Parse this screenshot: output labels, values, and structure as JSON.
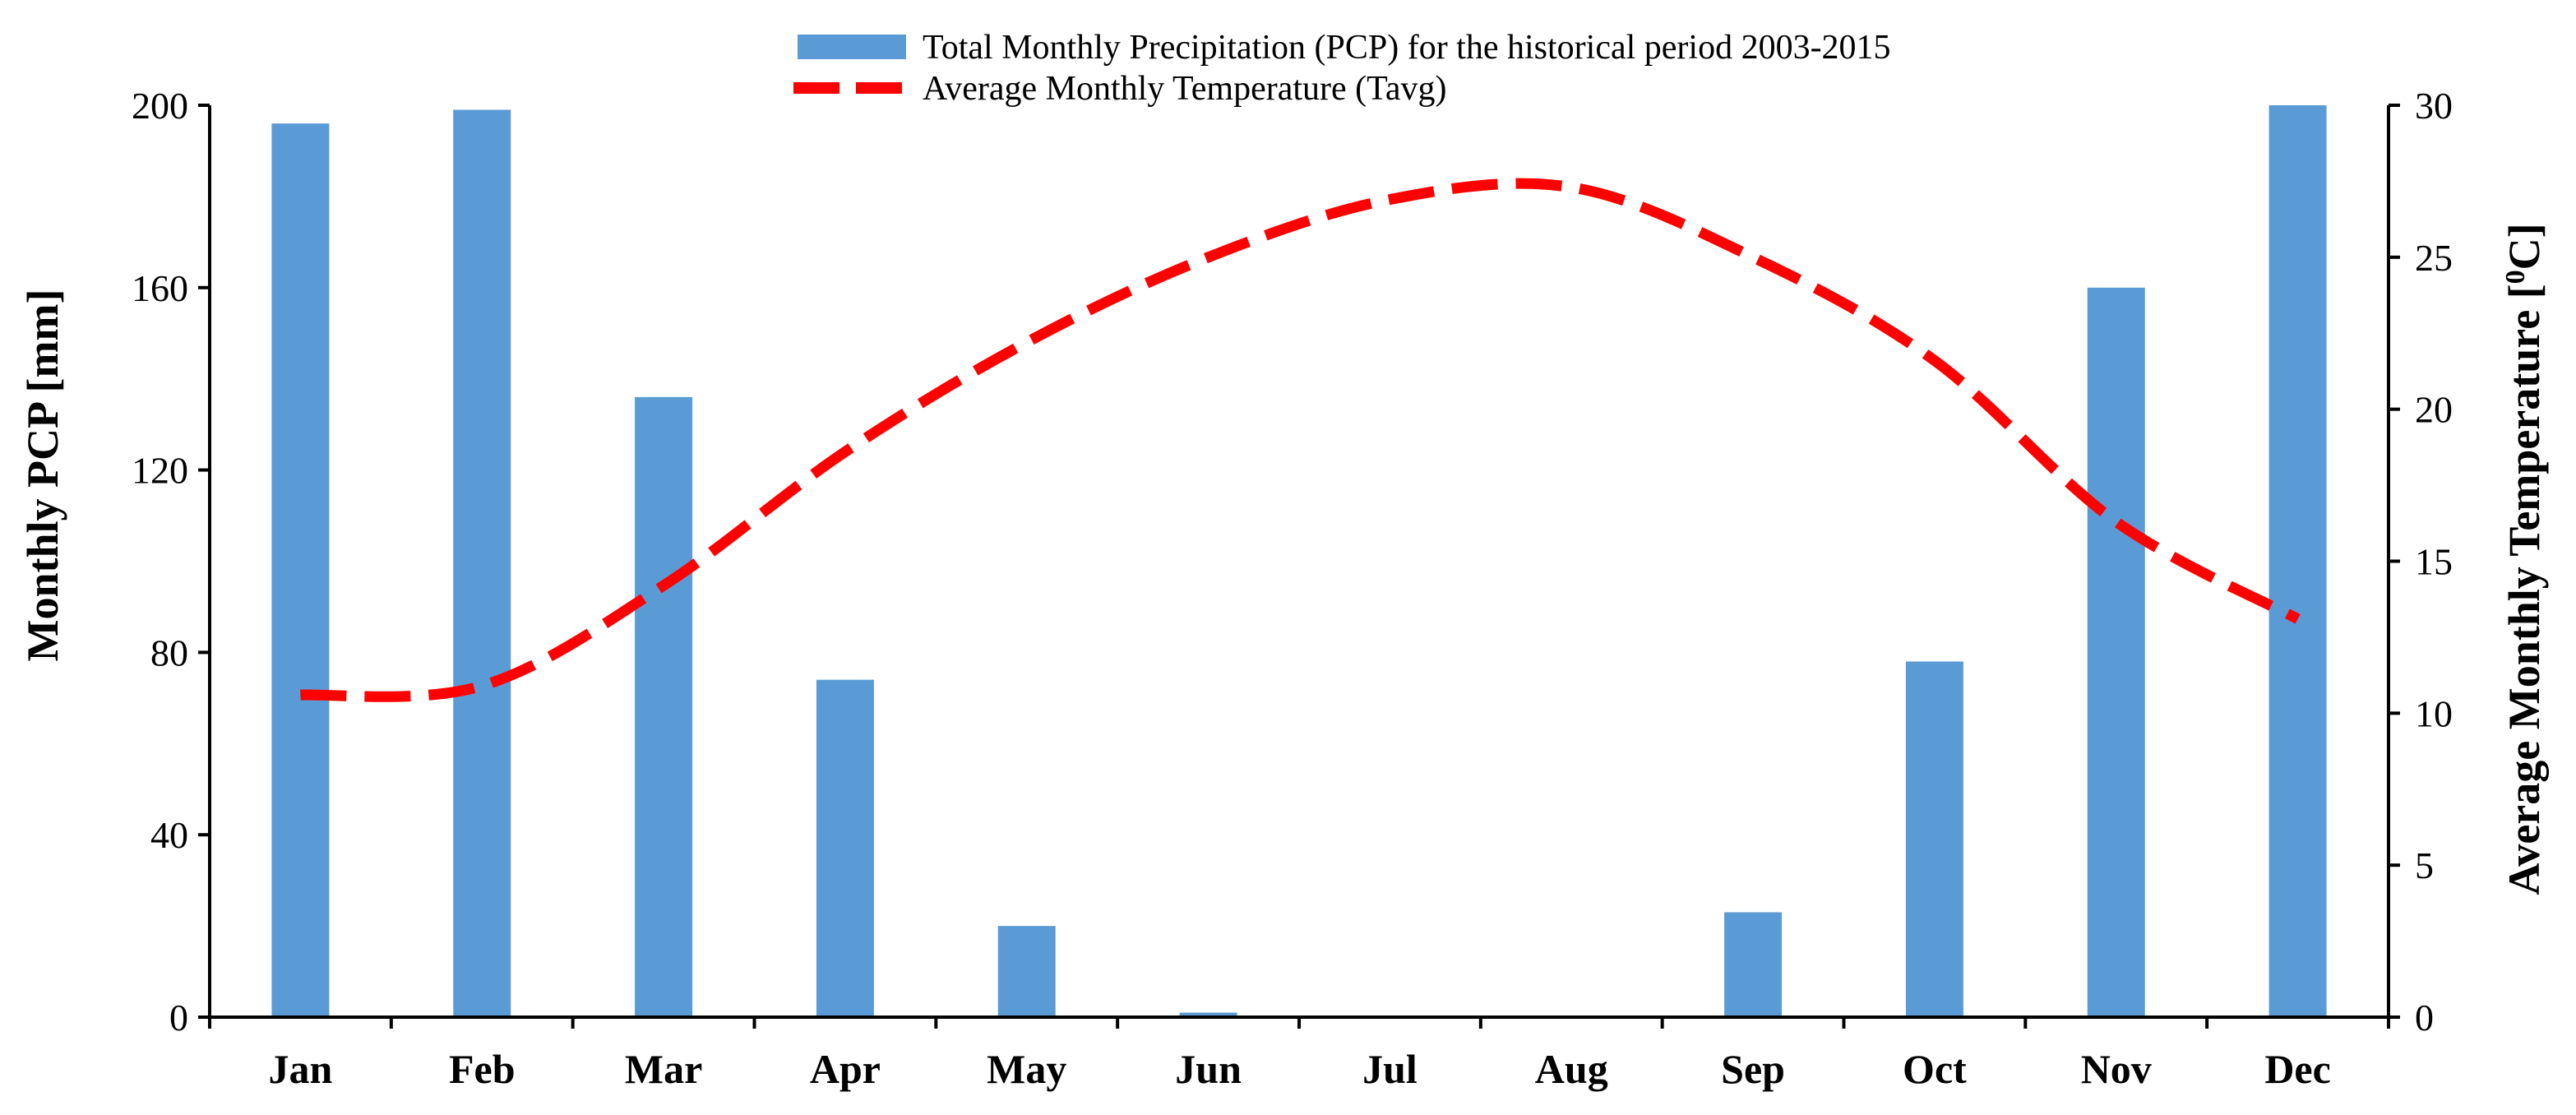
{
  "chart_data": {
    "type": "bar+line",
    "categories": [
      "Jan",
      "Feb",
      "Mar",
      "Apr",
      "May",
      "Jun",
      "Jul",
      "Aug",
      "Sep",
      "Oct",
      "Nov",
      "Dec"
    ],
    "series": [
      {
        "name": "Total Monthly Precipitation (PCP) for the historical period 2003-2015",
        "type": "bar",
        "axis": "left",
        "color": "#5B9BD5",
        "values": [
          196,
          199,
          136,
          74,
          20,
          1,
          0,
          0,
          23,
          78,
          160,
          200
        ]
      },
      {
        "name": "Average Monthly Temperature (Tavg)",
        "type": "line",
        "style": "dashed",
        "axis": "right",
        "color": "#FF0000",
        "values": [
          10.6,
          10.9,
          14.2,
          18.6,
          22.2,
          25.0,
          26.9,
          27.3,
          25.0,
          21.6,
          16.3,
          13.1
        ]
      }
    ],
    "ylabel": "Monthly PCP [mm]",
    "ylabel_right_main": "Average Monthly Temperature",
    "ylabel_right_unit_open": "[",
    "ylabel_right_unit_sup": "0",
    "ylabel_right_unit_close": "C]",
    "ylim": [
      0,
      200
    ],
    "yticks": [
      0,
      40,
      80,
      120,
      160,
      200
    ],
    "ylim_right": [
      0,
      30
    ],
    "yticks_right": [
      0,
      5,
      10,
      15,
      20,
      25,
      30
    ],
    "legend_position": "top-center",
    "grid": false
  }
}
